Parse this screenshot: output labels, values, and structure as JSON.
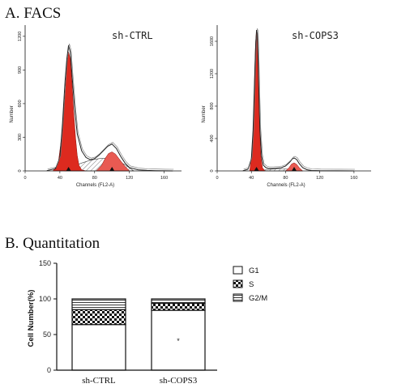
{
  "section_a": {
    "title": "A. FACS"
  },
  "section_b": {
    "title": "B. Quantitation"
  },
  "chart_data": [
    {
      "type": "area",
      "sample": "sh-CTRL",
      "xlabel": "Channels (FL2-A)",
      "ylabel": "Number",
      "xlim": [
        0,
        180
      ],
      "ylim": [
        0,
        1300
      ],
      "x_ticks": [
        0,
        40,
        80,
        120,
        160
      ],
      "y_ticks": [
        0,
        300,
        600,
        900,
        1200
      ],
      "grid": false,
      "colors": {
        "g1_fill": "#dd2a1f",
        "g2_fill": "#e85a52",
        "s_hatch": "#555555",
        "total": "#222222"
      },
      "series": [
        {
          "x": [
            25,
            35,
            40,
            43,
            46,
            48,
            50,
            52,
            54,
            57,
            60,
            65,
            70,
            75,
            80,
            85,
            90,
            95,
            100,
            105,
            110,
            115,
            120,
            130,
            140,
            150,
            160,
            170
          ],
          "values": [
            2,
            20,
            120,
            420,
            800,
            1000,
            1120,
            1060,
            850,
            560,
            330,
            180,
            120,
            100,
            110,
            140,
            180,
            220,
            240,
            200,
            130,
            70,
            30,
            10,
            4,
            2,
            1,
            0
          ]
        },
        {
          "x": [
            32,
            38,
            42,
            46,
            48,
            50,
            52,
            54,
            56,
            58,
            60,
            62,
            65,
            70
          ],
          "values": [
            0,
            60,
            300,
            700,
            960,
            1060,
            1000,
            780,
            520,
            300,
            140,
            50,
            10,
            0
          ]
        },
        {
          "x": [
            45,
            55,
            65,
            75,
            85,
            95,
            105,
            115,
            125
          ],
          "values": [
            0,
            40,
            70,
            95,
            110,
            115,
            95,
            55,
            0
          ]
        },
        {
          "x": [
            82,
            88,
            92,
            96,
            100,
            104,
            108,
            114,
            120
          ],
          "values": [
            0,
            50,
            110,
            155,
            170,
            150,
            110,
            50,
            0
          ]
        }
      ]
    },
    {
      "type": "area",
      "sample": "sh-COPS3",
      "xlabel": "Channels (FL2-A)",
      "ylabel": "Number",
      "xlim": [
        0,
        180
      ],
      "ylim": [
        0,
        1800
      ],
      "x_ticks": [
        0,
        40,
        80,
        120,
        160
      ],
      "y_ticks": [
        0,
        400,
        800,
        1200,
        1600
      ],
      "grid": false,
      "colors": {
        "g1_fill": "#dd2a1f",
        "g2_fill": "#e85a52",
        "s_hatch": "#555555",
        "total": "#222222"
      },
      "series": [
        {
          "x": [
            30,
            36,
            40,
            42,
            44,
            45,
            46,
            47,
            48,
            49,
            50,
            52,
            54,
            57,
            60,
            65,
            70,
            75,
            80,
            85,
            88,
            90,
            93,
            96,
            100,
            105,
            110,
            120,
            140,
            160
          ],
          "values": [
            2,
            20,
            150,
            500,
            1200,
            1550,
            1740,
            1700,
            1350,
            900,
            500,
            180,
            70,
            40,
            30,
            30,
            35,
            40,
            60,
            110,
            150,
            160,
            140,
            90,
            40,
            15,
            5,
            2,
            1,
            0
          ]
        },
        {
          "x": [
            38,
            41,
            43,
            44,
            45,
            46,
            47,
            48,
            49,
            50,
            51,
            53,
            56
          ],
          "values": [
            0,
            250,
            800,
            1250,
            1600,
            1730,
            1650,
            1300,
            850,
            450,
            200,
            40,
            0
          ]
        },
        {
          "x": [
            50,
            60,
            70,
            80,
            90,
            100
          ],
          "values": [
            0,
            20,
            25,
            25,
            15,
            0
          ]
        },
        {
          "x": [
            80,
            84,
            87,
            90,
            93,
            96,
            100
          ],
          "values": [
            0,
            40,
            85,
            100,
            80,
            40,
            0
          ]
        }
      ]
    },
    {
      "type": "bar",
      "stacked": true,
      "categories": [
        "sh-CTRL",
        "sh-COPS3"
      ],
      "ylabel": "Cell Number(%)",
      "ylim": [
        0,
        150
      ],
      "y_ticks": [
        0,
        50,
        100,
        150
      ],
      "series": [
        {
          "name": "G1",
          "values": [
            64,
            84
          ]
        },
        {
          "name": "S",
          "values": [
            21,
            10
          ]
        },
        {
          "name": "G2/M",
          "values": [
            15,
            6
          ]
        }
      ],
      "annotations": [
        {
          "category": "sh-COPS3",
          "text": "*"
        }
      ],
      "legend_position": "top-right"
    }
  ]
}
